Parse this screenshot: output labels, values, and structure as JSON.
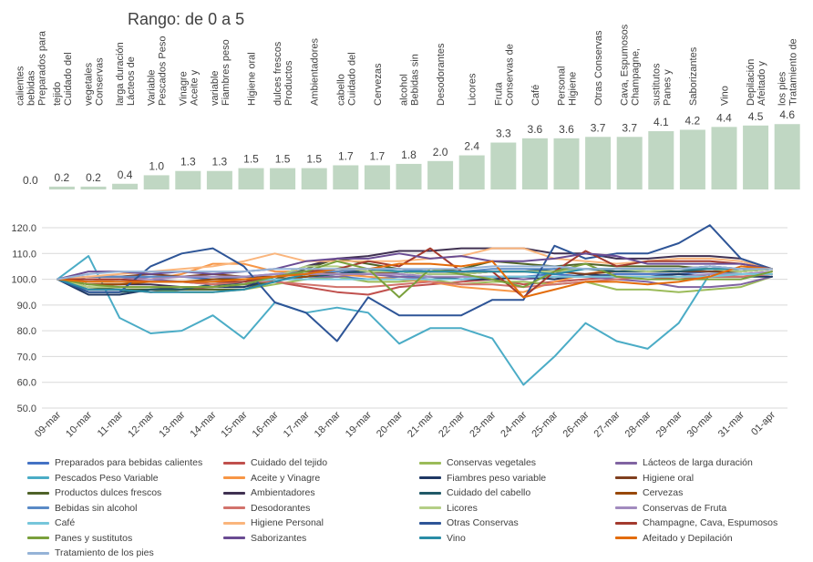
{
  "chart_data": [
    {
      "type": "bar",
      "title": "Rango: de 0 a 5",
      "color": "#c0d7c3",
      "categories": [
        "Preparados para bebidas calientes",
        "Cuidado del tejido",
        "Conservas vegetales",
        "Lácteos de larga duración",
        "Pescados Peso Variable",
        "Aceite y Vinagre",
        "Fiambres peso variable",
        "Higiene oral",
        "Productos dulces frescos",
        "Ambientadores",
        "Cuidado del cabello",
        "Cervezas",
        "Bebidas sin alcohol",
        "Desodorantes",
        "Licores",
        "Conservas de Fruta",
        "Café",
        "Higiene Personal",
        "Otras Conservas",
        "Champagne, Cava, Espumosos",
        "Panes y sustitutos",
        "Saborizantes",
        "Vino",
        "Afeitado y Depilación",
        "Tratamiento de los pies"
      ],
      "values": [
        0.0,
        0.2,
        0.2,
        0.4,
        1.0,
        1.3,
        1.3,
        1.5,
        1.5,
        1.5,
        1.7,
        1.7,
        1.8,
        2.0,
        2.4,
        3.3,
        3.6,
        3.6,
        3.7,
        3.7,
        4.1,
        4.2,
        4.4,
        4.5,
        4.6
      ],
      "labels": [
        "0.0",
        "0.2",
        "0.2",
        "0.4",
        "1.0",
        "1.3",
        "1.3",
        "1.5",
        "1.5",
        "1.5",
        "1.7",
        "1.7",
        "1.8",
        "2.0",
        "2.4",
        "3.3",
        "3.6",
        "3.6",
        "3.7",
        "3.7",
        "4.1",
        "4.2",
        "4.4",
        "4.5",
        "4.6"
      ],
      "ylim": [
        0,
        5
      ]
    },
    {
      "type": "line",
      "x": [
        "09-mar",
        "10-mar",
        "11-mar",
        "12-mar",
        "13-mar",
        "14-mar",
        "15-mar",
        "16-mar",
        "17-mar",
        "18-mar",
        "19-mar",
        "20-mar",
        "21-mar",
        "22-mar",
        "23-mar",
        "24-mar",
        "25-mar",
        "26-mar",
        "27-mar",
        "28-mar",
        "29-mar",
        "30-mar",
        "31-mar",
        "01-apr"
      ],
      "ylim": [
        50,
        120
      ],
      "yticks": [
        "50.0",
        "60.0",
        "70.0",
        "80.0",
        "90.0",
        "100.0",
        "110.0",
        "120.0"
      ],
      "grid": true,
      "legend": "bottom",
      "series": [
        {
          "name": "Preparados para bebidas calientes",
          "color": "#4472c4",
          "values": [
            100,
            99,
            100,
            101,
            101,
            100,
            101,
            100,
            100,
            101,
            100,
            101,
            101,
            100,
            101,
            101,
            102,
            101,
            102,
            102,
            102,
            103,
            103,
            104
          ]
        },
        {
          "name": "Cuidado del tejido",
          "color": "#c0504d",
          "values": [
            100,
            96,
            96,
            95,
            96,
            97,
            98,
            99,
            97,
            95,
            94,
            97,
            98,
            99,
            100,
            98,
            99,
            100,
            101,
            101,
            100,
            101,
            101,
            102
          ]
        },
        {
          "name": "Conservas vegetales",
          "color": "#9bbb59",
          "values": [
            100,
            97,
            96,
            96,
            95,
            95,
            96,
            98,
            100,
            101,
            99,
            99,
            100,
            98,
            99,
            99,
            98,
            99,
            96,
            96,
            95,
            96,
            97,
            101
          ]
        },
        {
          "name": "Lácteos de larga duración",
          "color": "#8064a2",
          "values": [
            100,
            101,
            101,
            100,
            99,
            98,
            99,
            100,
            101,
            101,
            102,
            101,
            100,
            101,
            101,
            100,
            101,
            101,
            100,
            99,
            97,
            97,
            98,
            101
          ]
        },
        {
          "name": "Pescados Peso Variable",
          "color": "#4bacc6",
          "values": [
            100,
            109,
            85,
            79,
            80,
            86,
            77,
            91,
            87,
            89,
            87,
            75,
            81,
            81,
            77,
            59,
            70,
            83,
            76,
            73,
            83,
            102,
            103,
            104
          ]
        },
        {
          "name": "Aceite y Vinagre",
          "color": "#f79646",
          "values": [
            100,
            99,
            100,
            100,
            102,
            106,
            106,
            103,
            103,
            102,
            101,
            100,
            99,
            97,
            96,
            95,
            99,
            102,
            104,
            103,
            103,
            104,
            103,
            104
          ]
        },
        {
          "name": "Fiambres peso variable",
          "color": "#1f3864",
          "values": [
            100,
            94,
            94,
            96,
            97,
            97,
            97,
            100,
            101,
            102,
            104,
            102,
            101,
            100,
            100,
            101,
            100,
            102,
            101,
            101,
            102,
            101,
            101,
            101
          ]
        },
        {
          "name": "Higiene oral",
          "color": "#7f3f1f",
          "values": [
            100,
            101,
            101,
            102,
            101,
            102,
            101,
            101,
            102,
            102,
            102,
            103,
            102,
            102,
            103,
            103,
            103,
            102,
            103,
            103,
            103,
            103,
            103,
            104
          ]
        },
        {
          "name": "Productos dulces frescos",
          "color": "#4f6228",
          "values": [
            100,
            97,
            96,
            96,
            96,
            96,
            96,
            100,
            104,
            108,
            106,
            104,
            103,
            104,
            107,
            106,
            105,
            106,
            105,
            105,
            105,
            104,
            103,
            104
          ]
        },
        {
          "name": "Ambientadores",
          "color": "#403152",
          "values": [
            100,
            98,
            98,
            98,
            97,
            97,
            99,
            101,
            105,
            108,
            109,
            111,
            111,
            112,
            112,
            112,
            110,
            110,
            108,
            108,
            109,
            109,
            108,
            104
          ]
        },
        {
          "name": "Cuidado del cabello",
          "color": "#215968",
          "values": [
            100,
            95,
            95,
            96,
            96,
            98,
            98,
            100,
            101,
            102,
            103,
            103,
            102,
            102,
            103,
            103,
            104,
            104,
            103,
            103,
            103,
            104,
            104,
            104
          ]
        },
        {
          "name": "Cervezas",
          "color": "#984807",
          "values": [
            100,
            98,
            98,
            99,
            99,
            100,
            100,
            100,
            101,
            103,
            104,
            104,
            103,
            103,
            103,
            103,
            103,
            104,
            104,
            104,
            104,
            105,
            104,
            104
          ]
        },
        {
          "name": "Bebidas sin alcohol",
          "color": "#5a8ac6",
          "values": [
            100,
            101,
            101,
            101,
            101,
            101,
            101,
            102,
            103,
            103,
            104,
            104,
            103,
            103,
            104,
            104,
            104,
            104,
            104,
            104,
            104,
            105,
            104,
            104
          ]
        },
        {
          "name": "Desodorantes",
          "color": "#d2736c",
          "values": [
            100,
            99,
            99,
            99,
            99,
            98,
            99,
            99,
            98,
            97,
            97,
            98,
            99,
            98,
            98,
            97,
            98,
            99,
            100,
            101,
            101,
            101,
            101,
            102
          ]
        },
        {
          "name": "Licores",
          "color": "#b4cf86",
          "values": [
            100,
            97,
            97,
            97,
            97,
            97,
            98,
            101,
            105,
            105,
            103,
            103,
            102,
            102,
            103,
            103,
            103,
            104,
            104,
            103,
            104,
            104,
            103,
            104
          ]
        },
        {
          "name": "Conservas de Fruta",
          "color": "#a28bbf",
          "values": [
            100,
            100,
            100,
            100,
            101,
            101,
            101,
            102,
            102,
            102,
            102,
            102,
            101,
            101,
            101,
            101,
            101,
            101,
            101,
            101,
            101,
            102,
            102,
            103
          ]
        },
        {
          "name": "Café",
          "color": "#76c6db",
          "values": [
            100,
            99,
            99,
            99,
            99,
            99,
            99,
            100,
            100,
            100,
            100,
            100,
            100,
            100,
            101,
            101,
            101,
            101,
            101,
            101,
            101,
            101,
            102,
            102
          ]
        },
        {
          "name": "Higiene Personal",
          "color": "#fab57c",
          "values": [
            100,
            101,
            102,
            103,
            104,
            105,
            107,
            110,
            107,
            107,
            107,
            107,
            108,
            109,
            112,
            112,
            108,
            107,
            106,
            107,
            108,
            108,
            107,
            104
          ]
        },
        {
          "name": "Otras Conservas",
          "color": "#2e5597",
          "values": [
            100,
            95,
            95,
            105,
            110,
            112,
            105,
            91,
            87,
            76,
            93,
            86,
            86,
            86,
            92,
            92,
            113,
            108,
            110,
            110,
            114,
            121,
            108,
            104
          ]
        },
        {
          "name": "Champagne, Cava, Espumosos",
          "color": "#a33a2e",
          "values": [
            100,
            100,
            100,
            99,
            99,
            99,
            99,
            101,
            103,
            104,
            107,
            105,
            112,
            103,
            103,
            93,
            103,
            111,
            105,
            107,
            107,
            107,
            106,
            104
          ]
        },
        {
          "name": "Panes y sustitutos",
          "color": "#7aa03c",
          "values": [
            100,
            98,
            97,
            97,
            97,
            97,
            98,
            101,
            103,
            107,
            104,
            93,
            104,
            102,
            100,
            97,
            103,
            106,
            101,
            100,
            100,
            100,
            100,
            103
          ]
        },
        {
          "name": "Saborizantes",
          "color": "#6a4c93",
          "values": [
            100,
            103,
            103,
            102,
            103,
            102,
            103,
            104,
            107,
            108,
            108,
            110,
            108,
            109,
            107,
            107,
            108,
            110,
            109,
            106,
            106,
            106,
            106,
            104
          ]
        },
        {
          "name": "Vino",
          "color": "#2a8ca6",
          "values": [
            100,
            96,
            96,
            95,
            95,
            95,
            96,
            99,
            102,
            104,
            104,
            103,
            103,
            103,
            103,
            103,
            102,
            104,
            104,
            104,
            104,
            104,
            104,
            104
          ]
        },
        {
          "name": "Afeitado y Depilación",
          "color": "#e36c0a",
          "values": [
            100,
            99,
            99,
            99,
            99,
            99,
            100,
            101,
            102,
            104,
            104,
            106,
            106,
            105,
            107,
            93,
            96,
            99,
            99,
            98,
            99,
            101,
            105,
            104
          ]
        },
        {
          "name": "Tratamiento de los pies",
          "color": "#95b3d7",
          "values": [
            100,
            102,
            103,
            103,
            103,
            103,
            103,
            104,
            104,
            104,
            104,
            104,
            104,
            104,
            105,
            105,
            105,
            104,
            104,
            104,
            104,
            105,
            104,
            104
          ]
        }
      ]
    }
  ]
}
